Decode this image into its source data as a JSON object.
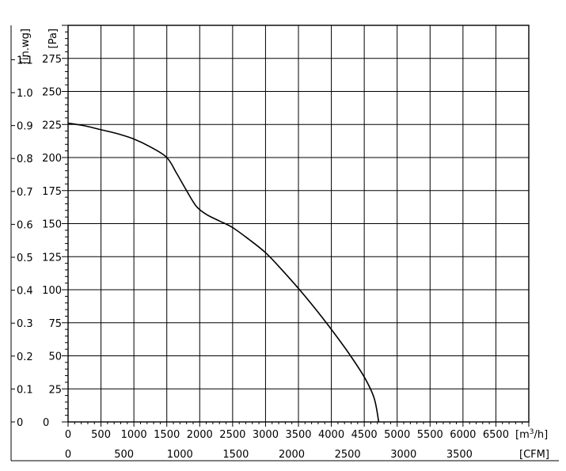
{
  "chart_data": {
    "type": "line",
    "x_unit_label": "[m³/h]",
    "x2_unit_label": "[CFM]",
    "y_unit_label": "[Pa]",
    "y2_unit_label": "[in.wg]",
    "xlim": [
      0,
      7000
    ],
    "ylim": [
      0,
      300
    ],
    "x_ticks": [
      0,
      500,
      1000,
      1500,
      2000,
      2500,
      3000,
      3500,
      4000,
      4500,
      5000,
      5500,
      6000,
      6500
    ],
    "y_ticks": [
      0,
      25,
      50,
      75,
      100,
      125,
      150,
      175,
      200,
      225,
      250,
      275
    ],
    "x2_ticks": [
      0,
      500,
      1000,
      1500,
      2000,
      2500,
      3000,
      3500
    ],
    "y2_ticks": [
      "0",
      "0.1",
      "0.2",
      "0.3",
      "0.4",
      "0.5",
      "0.6",
      "0.7",
      "0.8",
      "0.9",
      "1.0",
      "1.1"
    ],
    "grid": true,
    "series": [
      {
        "x": [
          0,
          250,
          500,
          750,
          1000,
          1250,
          1500,
          1650,
          1800,
          1950,
          2100,
          2300,
          2500,
          2750,
          3000,
          3250,
          3500,
          3750,
          4000,
          4250,
          4500,
          4650,
          4720
        ],
        "y": [
          226,
          224,
          221,
          218,
          214,
          208,
          200,
          188,
          175,
          163,
          157,
          152,
          147,
          138,
          128,
          115,
          101,
          86,
          70,
          53,
          34,
          18,
          0
        ]
      }
    ]
  }
}
